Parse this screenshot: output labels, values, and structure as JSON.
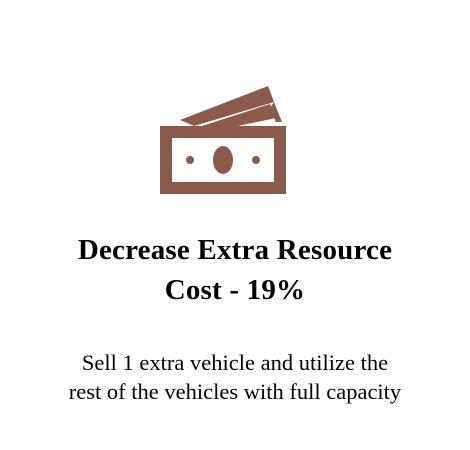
{
  "icon": {
    "name": "money-bills-icon",
    "color": "#8b5a4a"
  },
  "headline": {
    "line1": "Decrease Extra Resource",
    "line2": "Cost - 19%"
  },
  "description": {
    "line1": "Sell 1 extra vehicle and utilize the",
    "line2": "rest of the vehicles with full capacity"
  }
}
